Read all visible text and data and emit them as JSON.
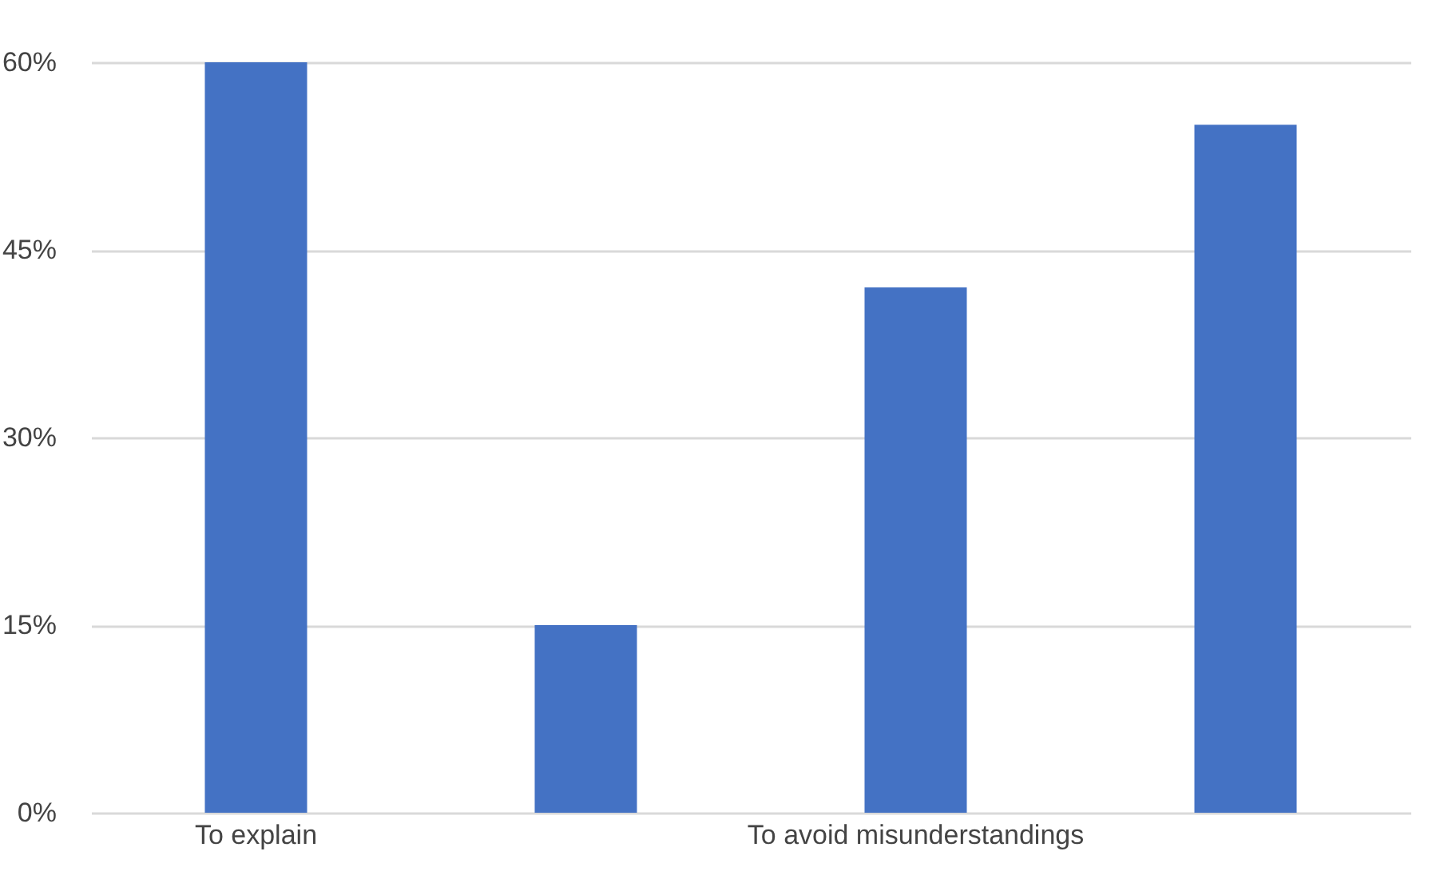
{
  "chart_data": {
    "type": "bar",
    "categories": [
      "To explain",
      null,
      "To avoid misunderstandings",
      null
    ],
    "values": [
      60,
      15,
      42,
      55
    ],
    "color": "#4472c4",
    "ylim": [
      0,
      60
    ],
    "yticks": [
      {
        "value": 0,
        "label": "0%"
      },
      {
        "value": 15,
        "label": "15%"
      },
      {
        "value": 30,
        "label": "30%"
      },
      {
        "value": 45,
        "label": "45%"
      },
      {
        "value": 60,
        "label": "60%"
      }
    ],
    "grid": "y"
  }
}
